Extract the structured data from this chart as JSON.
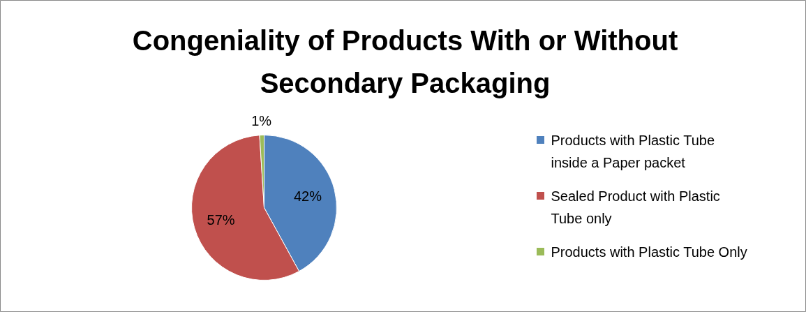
{
  "chart_data": {
    "type": "pie",
    "title": "Congeniality of Products With or Without Secondary Packaging",
    "categories": [
      "Products with Plastic Tube inside a Paper packet",
      "Sealed Product with Plastic Tube only",
      "Products with Plastic Tube Only"
    ],
    "values": [
      42,
      57,
      1
    ],
    "colors": [
      "#4f81bd",
      "#c0504d",
      "#9bbb59"
    ],
    "value_labels": [
      "42%",
      "57%",
      "1%"
    ],
    "legend": "right"
  }
}
